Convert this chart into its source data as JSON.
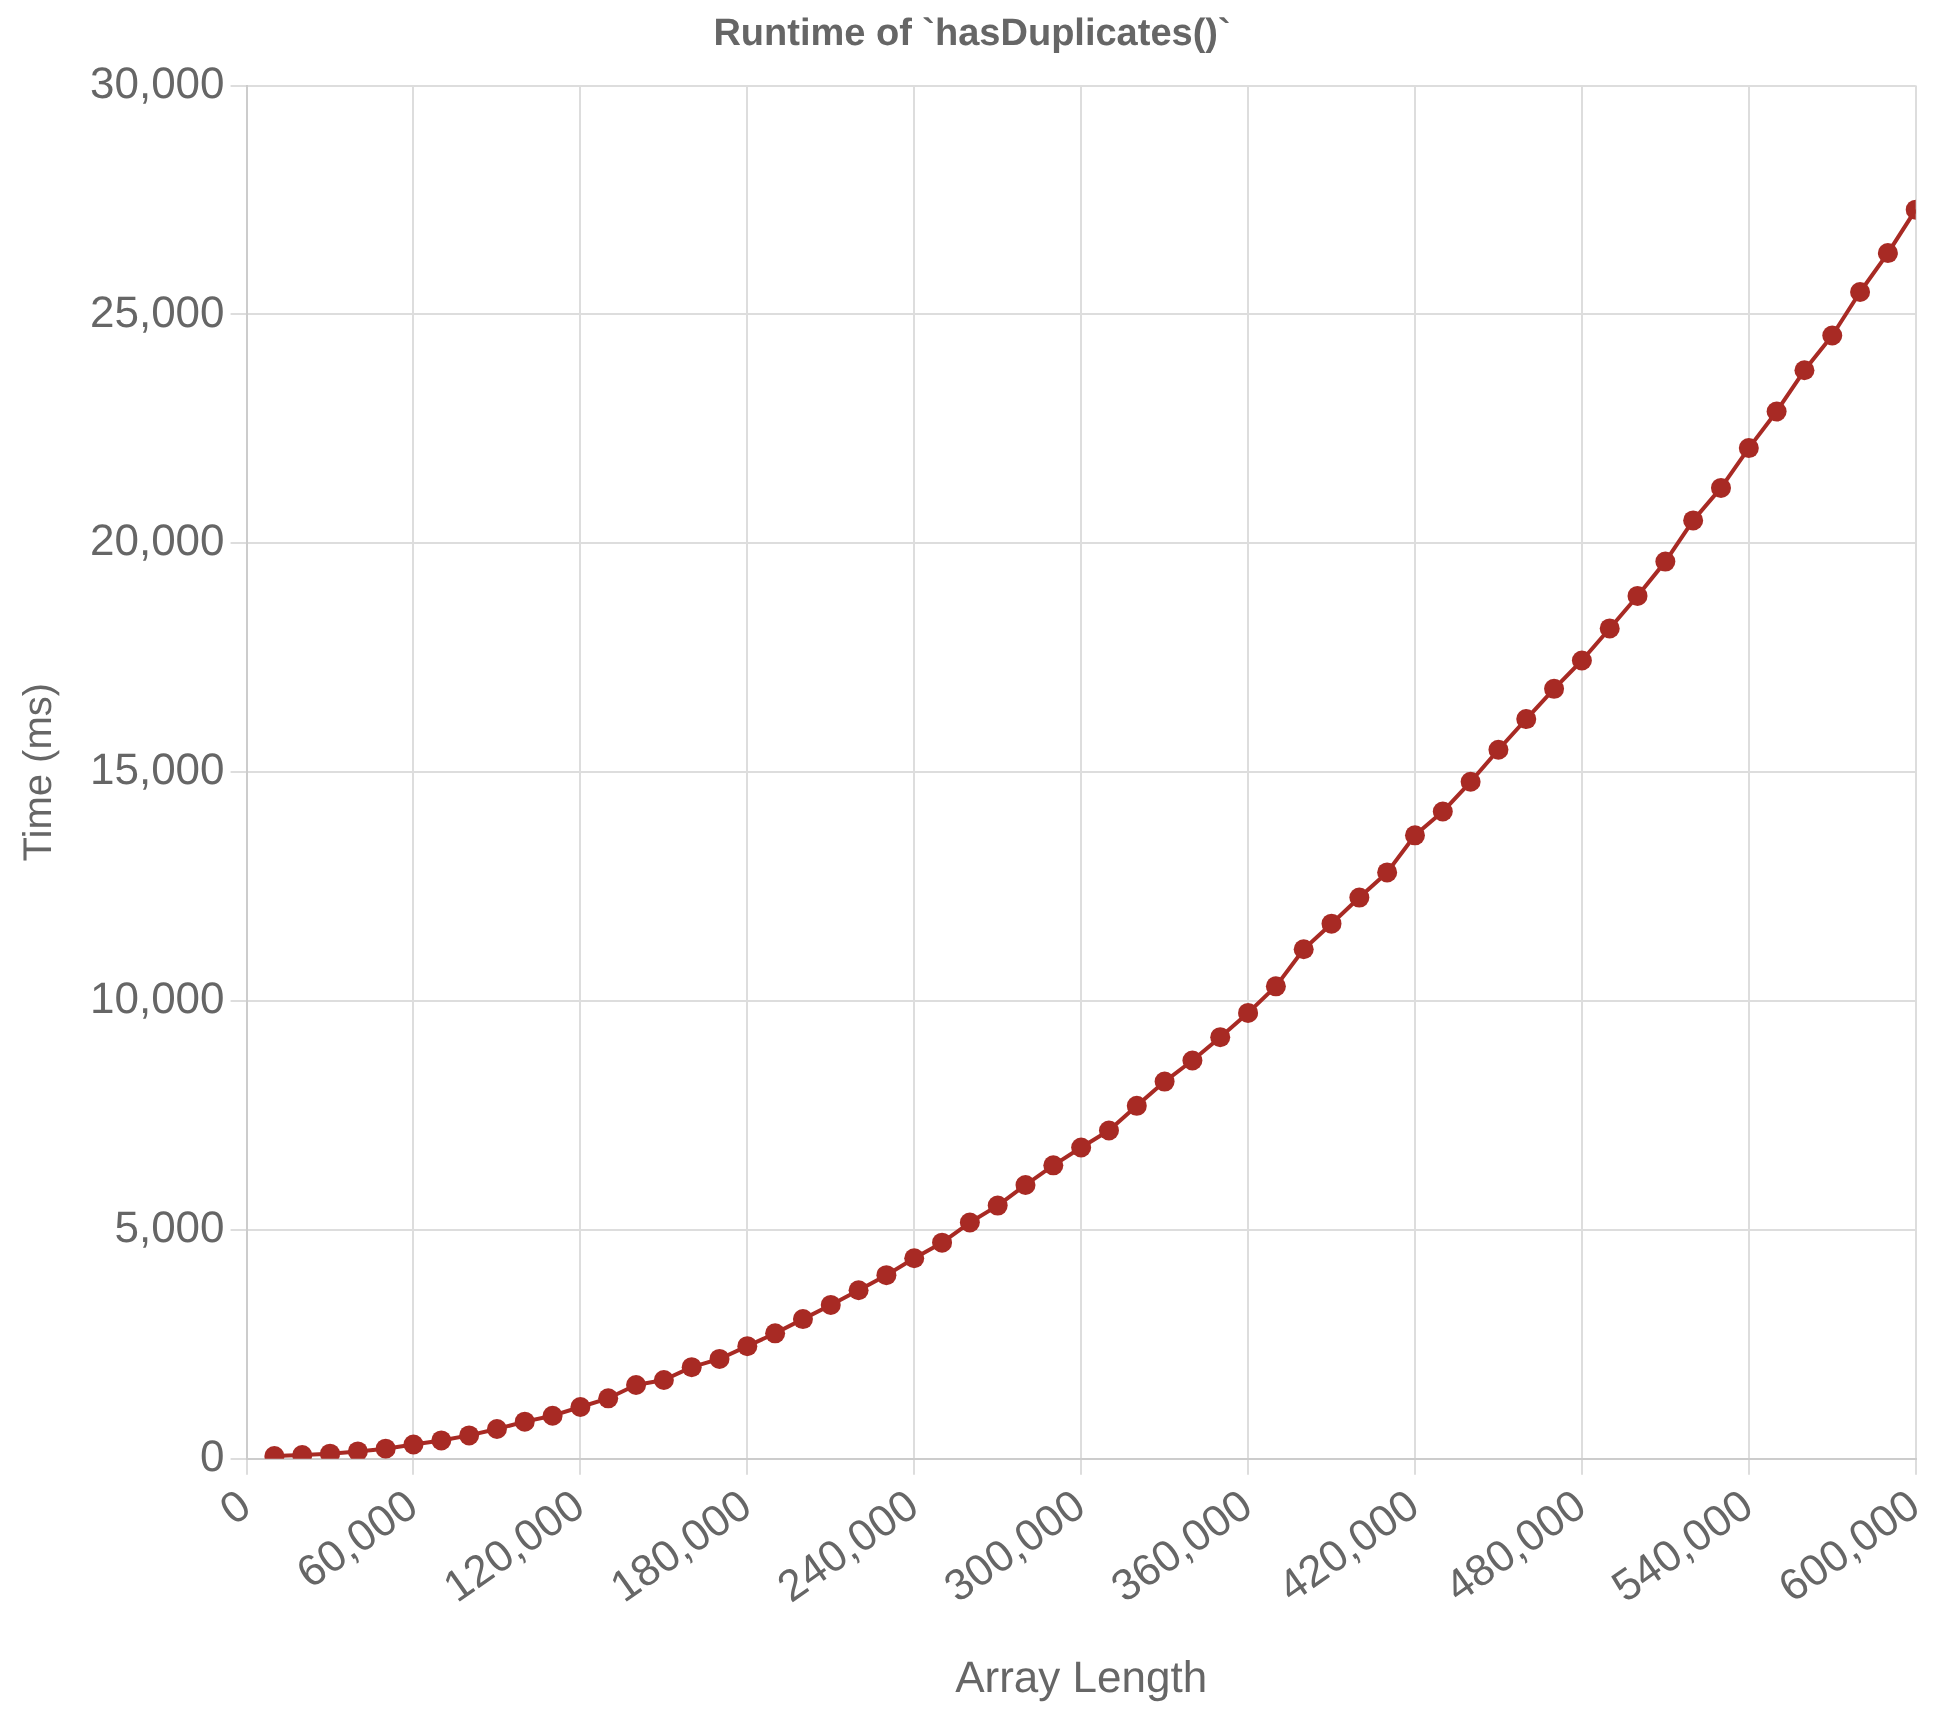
{
  "chart_data": {
    "type": "line",
    "title": "Runtime of `hasDuplicates()`",
    "xlabel": "Array Length",
    "ylabel": "Time (ms)",
    "x": [
      10000,
      20000,
      30000,
      40000,
      50000,
      60000,
      70000,
      80000,
      90000,
      100000,
      110000,
      120000,
      130000,
      140000,
      150000,
      160000,
      170000,
      180000,
      190000,
      200000,
      210000,
      220000,
      230000,
      240000,
      250000,
      260000,
      270000,
      280000,
      290000,
      300000,
      310000,
      320000,
      330000,
      340000,
      350000,
      360000,
      370000,
      380000,
      390000,
      400000,
      410000,
      420000,
      430000,
      440000,
      450000,
      460000,
      470000,
      480000,
      490000,
      500000,
      510000,
      520000,
      530000,
      540000,
      550000,
      560000,
      570000,
      580000,
      590000,
      600000
    ],
    "series": [
      {
        "color": "#a82a24",
        "values": [
          60,
          80,
          110,
          160,
          220,
          310,
          400,
          510,
          650,
          810,
          940,
          1130,
          1320,
          1610,
          1720,
          2000,
          2180,
          2460,
          2740,
          3050,
          3360,
          3680,
          4010,
          4380,
          4720,
          5160,
          5530,
          5980,
          6410,
          6800,
          7170,
          7710,
          8240,
          8700,
          9210,
          9740,
          10320,
          11130,
          11690,
          12260,
          12810,
          13620,
          14140,
          14790,
          15490,
          16160,
          16820,
          17440,
          18140,
          18850,
          19600,
          20500,
          21210,
          22080,
          22880,
          23780,
          24540,
          25490,
          26340,
          27290
        ]
      }
    ],
    "xlim": [
      0,
      600000
    ],
    "xticks": [
      0,
      {
        "value": 60000,
        "label": "60,000"
      },
      {
        "value": 120000,
        "label": "120,000"
      },
      {
        "value": 180000,
        "label": "180,000"
      },
      {
        "value": 240000,
        "label": "240,000"
      },
      {
        "value": 300000,
        "label": "300,000"
      },
      {
        "value": 360000,
        "label": "360,000"
      },
      {
        "value": 420000,
        "label": "420,000"
      },
      {
        "value": 480000,
        "label": "480,000"
      },
      {
        "value": 540000,
        "label": "540,000"
      },
      {
        "value": 600000,
        "label": "600,000"
      }
    ],
    "ylim": [
      0,
      30000
    ],
    "yticks": [
      0,
      {
        "value": 5000,
        "label": "5,000"
      },
      {
        "value": 10000,
        "label": "10,000"
      },
      {
        "value": 15000,
        "label": "15,000"
      },
      {
        "value": 20000,
        "label": "20,000"
      },
      {
        "value": 25000,
        "label": "25,000"
      },
      {
        "value": 30000,
        "label": "30,000"
      }
    ],
    "grid": true,
    "legend": false,
    "marker": "circle",
    "line_style": "solid"
  }
}
